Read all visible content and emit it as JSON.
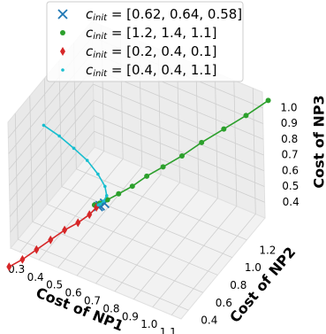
{
  "chart_data": {
    "type": "line3d",
    "xlabel": "Cost of NP1",
    "ylabel": "Cost of NP2",
    "zlabel": "Cost of NP3",
    "xlim": [
      0.25,
      1.15
    ],
    "ylim": [
      0.3,
      1.45
    ],
    "zlim": [
      0.3,
      1.1
    ],
    "xticks": [
      0.3,
      0.4,
      0.5,
      0.6,
      0.7,
      0.8,
      0.9,
      {
        "value": 1,
        "label": "1.0"
      },
      1.1
    ],
    "yticks": [
      0.4,
      0.6,
      0.8,
      {
        "value": 1,
        "label": "1.0"
      },
      1.2
    ],
    "zticks": [
      0.4,
      0.5,
      0.6,
      0.7,
      0.8,
      0.9,
      {
        "value": 1,
        "label": "1.0"
      }
    ],
    "grid": true,
    "legend": "upper center",
    "series": [
      {
        "name": "c",
        "name_sub": "init",
        "name_rest": " = [0.62, 0.64, 0.58]",
        "color": "#1f77b4",
        "marker": "x",
        "line": false,
        "x": [
          0.62,
          0.6,
          0.59
        ],
        "y": [
          0.64,
          0.63,
          0.63
        ],
        "z": [
          0.58,
          0.56,
          0.55
        ]
      },
      {
        "name": "c",
        "name_sub": "init",
        "name_rest": " = [1.2, 1.4, 1.1]",
        "color": "#2ca02c",
        "marker": "o",
        "line": true,
        "x": [
          1.2,
          1.12,
          1.04,
          0.96,
          0.89,
          0.82,
          0.76,
          0.71,
          0.66,
          0.62,
          0.59,
          0.57
        ],
        "y": [
          1.4,
          1.3,
          1.2,
          1.1,
          1.01,
          0.93,
          0.86,
          0.79,
          0.73,
          0.68,
          0.65,
          0.63
        ],
        "z": [
          1.1,
          1.02,
          0.95,
          0.88,
          0.81,
          0.75,
          0.7,
          0.65,
          0.61,
          0.58,
          0.56,
          0.55
        ]
      },
      {
        "name": "c",
        "name_sub": "init",
        "name_rest": " = [0.2, 0.4, 0.1]",
        "color": "#d62728",
        "marker": "d",
        "line": true,
        "x": [
          0.2,
          0.26,
          0.32,
          0.38,
          0.44,
          0.5,
          0.55,
          0.58
        ],
        "y": [
          0.4,
          0.43,
          0.47,
          0.51,
          0.55,
          0.58,
          0.61,
          0.63
        ],
        "z": [
          0.1,
          0.16,
          0.23,
          0.3,
          0.37,
          0.43,
          0.49,
          0.54
        ]
      },
      {
        "name": "c",
        "name_sub": "init",
        "name_rest": " = [0.4, 0.4, 1.1]",
        "color": "#17becf",
        "marker": ".",
        "line": true,
        "x": [
          0.4,
          0.47,
          0.53,
          0.58,
          0.62,
          0.64,
          0.64,
          0.62,
          0.6,
          0.59
        ],
        "y": [
          0.4,
          0.43,
          0.47,
          0.52,
          0.56,
          0.6,
          0.62,
          0.63,
          0.63,
          0.63
        ],
        "z": [
          1.1,
          1.05,
          0.98,
          0.9,
          0.81,
          0.72,
          0.65,
          0.6,
          0.57,
          0.56
        ]
      }
    ]
  }
}
